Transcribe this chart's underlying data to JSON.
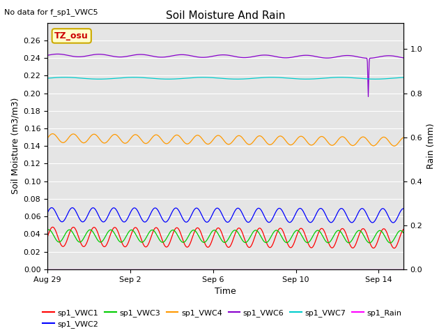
{
  "title": "Soil Moisture And Rain",
  "top_note": "No data for f_sp1_VWC5",
  "xlabel": "Time",
  "ylabel_left": "Soil Moisture (m3/m3)",
  "ylabel_right": "Rain (mm)",
  "ylim_left": [
    0.0,
    0.28
  ],
  "ylim_right": [
    0.0,
    1.12
  ],
  "yticks_left": [
    0.0,
    0.02,
    0.04,
    0.06,
    0.08,
    0.1,
    0.12,
    0.14,
    0.16,
    0.18,
    0.2,
    0.22,
    0.24,
    0.26
  ],
  "yticks_right": [
    0.0,
    0.2,
    0.4,
    0.6,
    0.8,
    1.0
  ],
  "xtick_pos": [
    0,
    4,
    8,
    12,
    16
  ],
  "xtick_labels": [
    "Aug 29",
    "Sep 2",
    "Sep 6",
    "Sep 10",
    "Sep 14"
  ],
  "xlim": [
    0,
    17.2
  ],
  "bg_color": "#e5e5e5",
  "fig_color": "#ffffff",
  "annotation": {
    "text": "TZ_osu",
    "facecolor": "#ffffcc",
    "edgecolor": "#ccaa00"
  },
  "series": {
    "sp1_VWC1": {
      "color": "#ff0000",
      "base": 0.037,
      "amp": 0.011,
      "freq": 1.0,
      "phase": 0.0,
      "trend": -0.002
    },
    "sp1_VWC2": {
      "color": "#0000ff",
      "base": 0.062,
      "amp": 0.008,
      "freq": 1.0,
      "phase": 0.3,
      "trend": -0.001
    },
    "sp1_VWC3": {
      "color": "#00cc00",
      "base": 0.038,
      "amp": 0.007,
      "freq": 1.0,
      "phase": 1.2,
      "trend": -0.001
    },
    "sp1_VWC4": {
      "color": "#ff9900",
      "base": 0.149,
      "amp": 0.005,
      "freq": 1.0,
      "phase": 0.0,
      "trend": -0.004
    },
    "sp1_VWC6": {
      "color": "#8800cc",
      "base": 0.243,
      "amp": 0.0015,
      "freq": 0.5,
      "phase": 0.0,
      "trend": -0.002,
      "spike_t": 15.5,
      "spike_low": 0.196
    },
    "sp1_VWC7": {
      "color": "#00cccc",
      "base": 0.217,
      "amp": 0.001,
      "freq": 0.3,
      "phase": 0.0,
      "trend": 0.0
    },
    "sp1_Rain": {
      "color": "#ff00ff",
      "base": 0.0
    }
  },
  "legend_order": [
    "sp1_VWC1",
    "sp1_VWC2",
    "sp1_VWC3",
    "sp1_VWC4",
    "sp1_VWC6",
    "sp1_VWC7",
    "sp1_Rain"
  ],
  "legend_colors": {
    "sp1_VWC1": "#ff0000",
    "sp1_VWC2": "#0000ff",
    "sp1_VWC3": "#00cc00",
    "sp1_VWC4": "#ff9900",
    "sp1_VWC6": "#8800cc",
    "sp1_VWC7": "#00cccc",
    "sp1_Rain": "#ff00ff"
  },
  "grid_color": "#ffffff",
  "tick_fontsize": 8,
  "label_fontsize": 9,
  "title_fontsize": 11
}
